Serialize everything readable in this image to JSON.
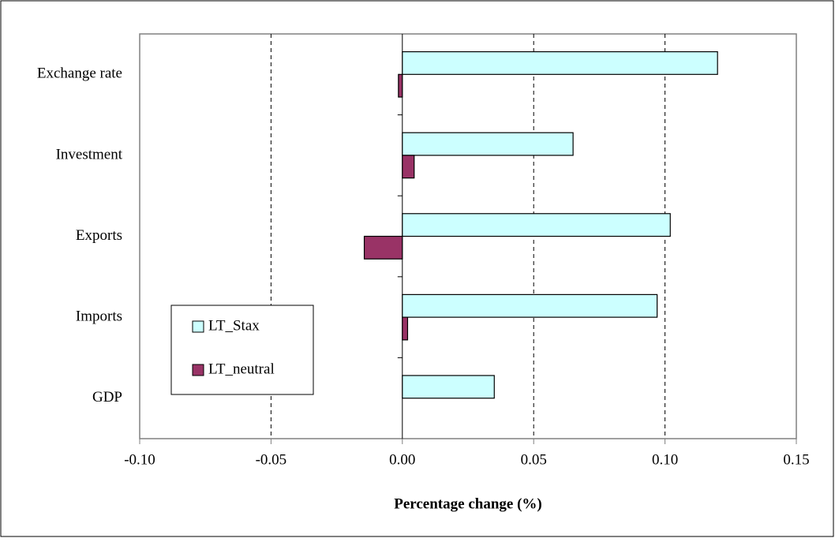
{
  "chart_data": {
    "type": "barh",
    "xlabel": "Percentage change (%)",
    "categories": [
      "Exchange rate",
      "Investment",
      "Exports",
      "Imports",
      "GDP"
    ],
    "series": [
      {
        "name": "LT_Stax",
        "color": "#ccffff",
        "values": [
          0.12,
          0.065,
          0.102,
          0.097,
          0.035
        ]
      },
      {
        "name": "LT_neutral",
        "color": "#993366",
        "values": [
          -0.0015,
          0.0045,
          -0.0145,
          0.002,
          0
        ]
      }
    ],
    "xlim": [
      -0.1,
      0.15
    ],
    "xticks": [
      {
        "value": -0.1,
        "label": "-0.10"
      },
      -0.05,
      {
        "value": 0,
        "label": "0.00"
      },
      0.05,
      {
        "value": 0.1,
        "label": "0.10"
      },
      0.15
    ],
    "grid": true,
    "legend": "lower left"
  }
}
